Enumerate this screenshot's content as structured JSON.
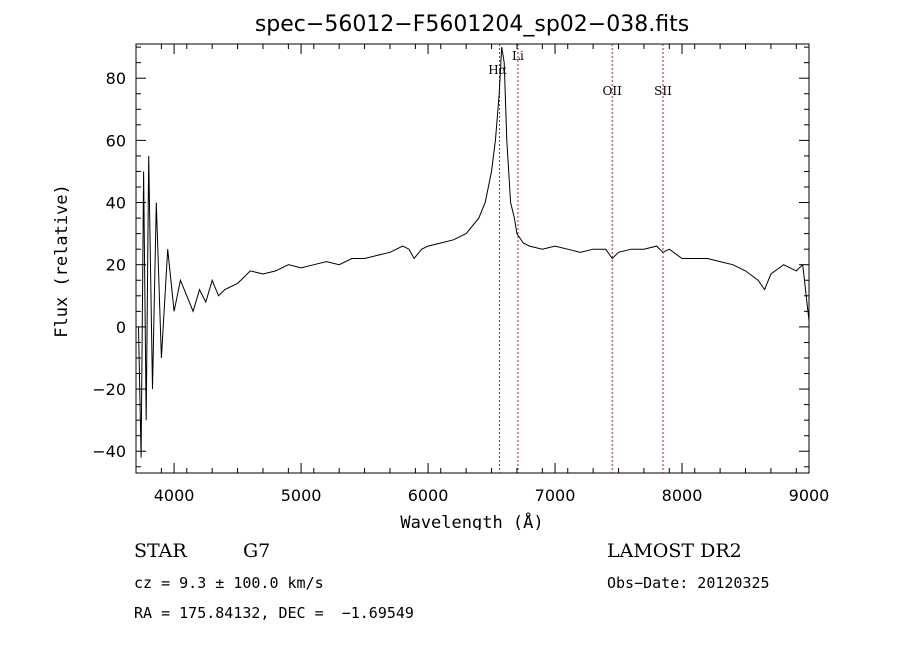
{
  "chart_data": {
    "type": "line",
    "title": "spec−56012−F5601204_sp02−038.fits",
    "xlabel": "Wavelength (Å)",
    "ylabel": "Flux (relative)",
    "xlim": [
      3700,
      9000
    ],
    "ylim": [
      -47,
      91
    ],
    "xticks": [
      4000,
      5000,
      6000,
      7000,
      8000,
      9000
    ],
    "yticks": [
      -40,
      -20,
      0,
      20,
      40,
      60,
      80
    ],
    "ytick_labels": [
      "−40",
      "−20",
      "0",
      "20",
      "40",
      "60",
      "80"
    ],
    "series": [
      {
        "name": "spectrum",
        "color": "#000000",
        "x": [
          3720,
          3740,
          3760,
          3780,
          3800,
          3830,
          3860,
          3900,
          3950,
          4000,
          4050,
          4100,
          4150,
          4200,
          4250,
          4300,
          4350,
          4400,
          4500,
          4600,
          4700,
          4800,
          4900,
          5000,
          5100,
          5200,
          5300,
          5400,
          5500,
          5600,
          5700,
          5800,
          5850,
          5890,
          5950,
          6000,
          6100,
          6200,
          6300,
          6400,
          6450,
          6500,
          6530,
          6560,
          6580,
          6600,
          6620,
          6650,
          6680,
          6700,
          6750,
          6800,
          6900,
          7000,
          7100,
          7200,
          7300,
          7400,
          7450,
          7500,
          7600,
          7700,
          7800,
          7850,
          7900,
          8000,
          8100,
          8200,
          8300,
          8400,
          8500,
          8600,
          8650,
          8700,
          8800,
          8900,
          8950,
          9000
        ],
        "y": [
          0,
          -42,
          50,
          -30,
          55,
          -20,
          40,
          -10,
          25,
          5,
          15,
          10,
          5,
          12,
          8,
          15,
          10,
          12,
          14,
          18,
          17,
          18,
          20,
          19,
          20,
          21,
          20,
          22,
          22,
          23,
          24,
          26,
          25,
          22,
          25,
          26,
          27,
          28,
          30,
          35,
          40,
          50,
          60,
          75,
          90,
          85,
          60,
          40,
          35,
          30,
          27,
          26,
          25,
          26,
          25,
          24,
          25,
          25,
          22,
          24,
          25,
          25,
          26,
          24,
          25,
          22,
          22,
          22,
          21,
          20,
          18,
          15,
          12,
          17,
          20,
          18,
          20,
          2
        ]
      }
    ],
    "lines": [
      {
        "label": "Hα",
        "x": 6563
      },
      {
        "label": "Li",
        "x": 6708
      },
      {
        "label": "OII",
        "x": 7450
      },
      {
        "label": "SII",
        "x": 7850
      }
    ]
  },
  "info": {
    "class": "STAR",
    "subclass": "G7",
    "survey": "LAMOST DR2",
    "cz": "cz = 9.3 ± 100.0 km/s",
    "obs_date": "Obs−Date: 20120325",
    "coords": "RA = 175.84132, DEC =  −1.69549"
  }
}
